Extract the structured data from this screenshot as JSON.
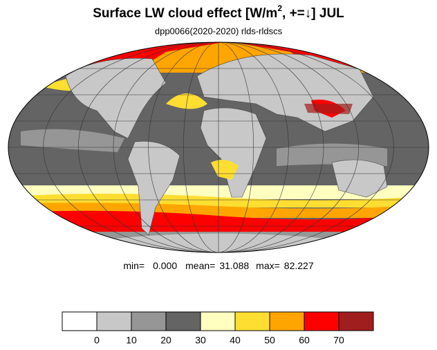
{
  "header": {
    "title": {
      "main": "Surface LW cloud effect [W/m",
      "sup": "2",
      "rest": ", +=↓]  JUL"
    },
    "subtitle": "dpp0066(2020-2020)   rlds-rldscs"
  },
  "stats": {
    "min_label": "min=",
    "min": "0.000",
    "mean_label": "mean=",
    "mean": "31.088",
    "max_label": "max=",
    "max": "82.227"
  },
  "colorbar": {
    "colors": [
      "#ffffff",
      "#c8c8c8",
      "#969696",
      "#646464",
      "#ffffc0",
      "#ffde32",
      "#ffa500",
      "#ff0000",
      "#a01e1e"
    ],
    "ticks": [
      0,
      10,
      20,
      30,
      40,
      50,
      60,
      70
    ]
  }
}
